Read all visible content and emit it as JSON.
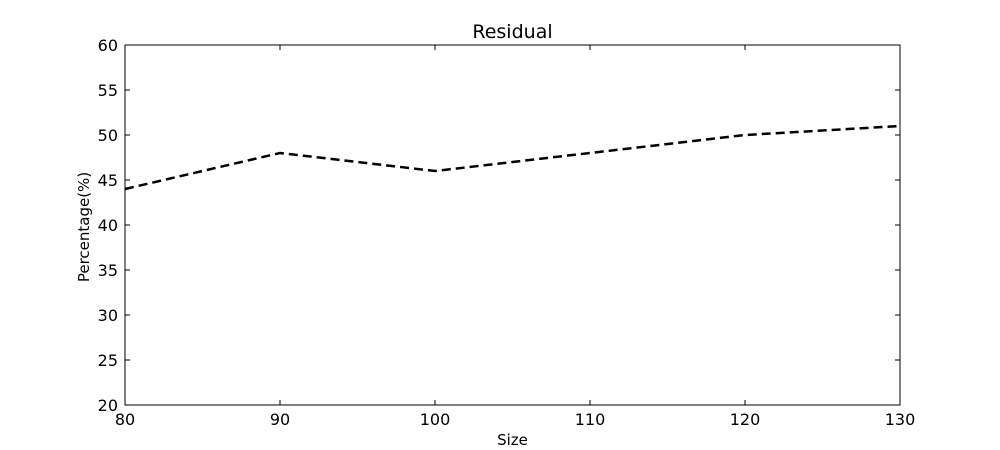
{
  "chart_data": {
    "type": "line",
    "title": "Residual",
    "xlabel": "Size",
    "ylabel": "Percentage(%)",
    "xlim": [
      80,
      130
    ],
    "ylim": [
      20,
      60
    ],
    "xticks": [
      80,
      90,
      100,
      110,
      120,
      130
    ],
    "yticks": [
      20,
      25,
      30,
      35,
      40,
      45,
      50,
      55,
      60
    ],
    "grid": false,
    "series": [
      {
        "x": [
          80,
          90,
          100,
          120,
          130
        ],
        "values": [
          44,
          48,
          46,
          50,
          51
        ],
        "color": "#000000",
        "line_style": "dashed"
      }
    ]
  }
}
